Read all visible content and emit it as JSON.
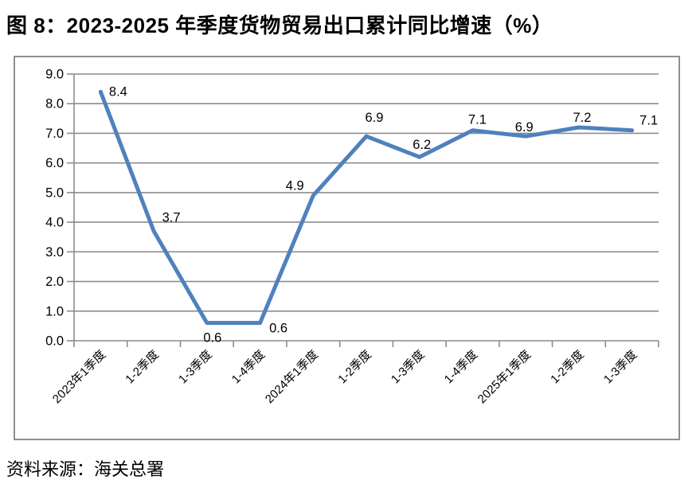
{
  "title": "图 8：2023-2025 年季度货物贸易出口累计同比增速（%）",
  "source": "资料来源：海关总署",
  "colors": {
    "line": "#4F81BD",
    "grid": "#8C8C8C",
    "frame_border": "#8F8F8F",
    "text": "#000000",
    "background": "#FFFFFF"
  },
  "chart_data": {
    "type": "line",
    "title": "2023-2025 年季度货物贸易出口累计同比增速（%）",
    "categories": [
      "2023年1季度",
      "1-2季度",
      "1-3季度",
      "1-4季度",
      "2024年1季度",
      "1-2季度",
      "1-3季度",
      "1-4季度",
      "2025年1季度",
      "1-2季度",
      "1-3季度"
    ],
    "values": [
      8.4,
      3.7,
      0.6,
      0.6,
      4.9,
      6.9,
      6.2,
      7.1,
      6.9,
      7.2,
      7.1
    ],
    "xlabel": "",
    "ylabel": "",
    "ylim": [
      0,
      9
    ],
    "ytick_step": 1,
    "ytick_decimals": 1,
    "label_decimals": 1,
    "grid": true,
    "legend": "none",
    "markers": "none",
    "data_labels": true
  }
}
